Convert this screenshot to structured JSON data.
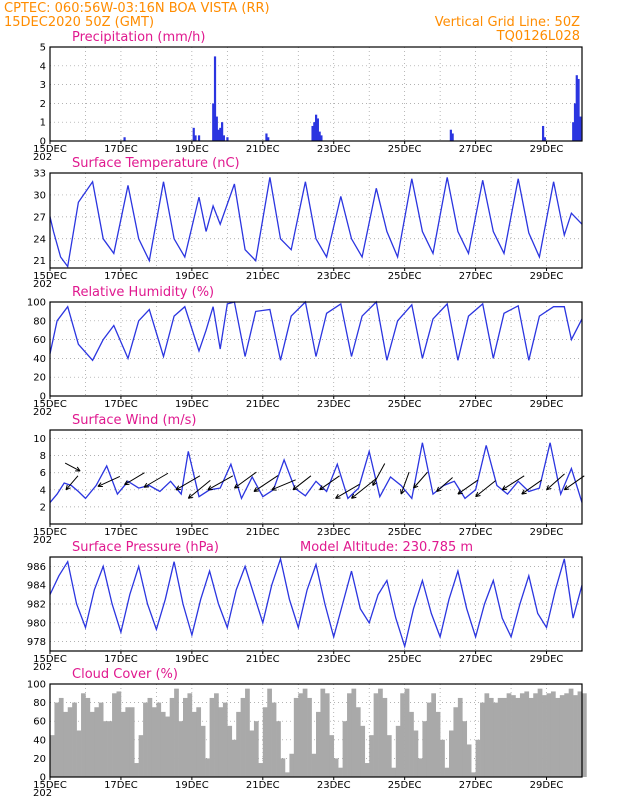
{
  "header": {
    "line1_left": "CPTEC:   060:56W-03:16N  BOA VISTA (RR)",
    "line2_left": "15DEC2020 50Z (GMT)",
    "line2_right": "Vertical Grid Line: 50Z",
    "line3_right": "TQ0126L028"
  },
  "x_ticks": [
    "15DEC",
    "17DEC",
    "19DEC",
    "21DEC",
    "23DEC",
    "25DEC",
    "27DEC",
    "29DEC"
  ],
  "year_stub": "202",
  "panels": {
    "precip": {
      "title": "Precipitation (mm/h)"
    },
    "temp": {
      "title": "Surface Temperature (nC)"
    },
    "rh": {
      "title": "Relative Humidity (%)"
    },
    "wind": {
      "title": "Surface Wind (m/s)"
    },
    "pres": {
      "title": "Surface Pressure (hPa)",
      "extra": "Model Altitude: 230.785 m"
    },
    "cloud": {
      "title": "Cloud Cover (%)"
    }
  },
  "colors": {
    "series": "#2b35e0",
    "cloud": "#a9a9a9",
    "header": "#ff8c00",
    "title": "#e0198f"
  },
  "chart_data": [
    {
      "type": "bar",
      "title": "Precipitation (mm/h)",
      "ylim": [
        0,
        5
      ],
      "yticks": [
        0,
        1,
        2,
        3,
        4,
        5
      ],
      "xlim_days": [
        15,
        30
      ],
      "x": [
        17.1,
        19.05,
        19.1,
        19.2,
        19.6,
        19.65,
        19.7,
        19.75,
        19.8,
        19.85,
        19.9,
        20.0,
        21.1,
        21.15,
        22.4,
        22.45,
        22.5,
        22.55,
        22.6,
        22.65,
        26.3,
        26.35,
        28.9,
        28.95,
        29.75,
        29.8,
        29.85,
        29.9,
        29.95
      ],
      "values": [
        0.2,
        0.7,
        0.3,
        0.3,
        2.0,
        4.5,
        1.3,
        0.6,
        0.7,
        1.0,
        0.3,
        0.2,
        0.4,
        0.2,
        0.8,
        1.0,
        1.4,
        1.2,
        0.5,
        0.3,
        0.6,
        0.4,
        0.8,
        0.2,
        1.0,
        2.0,
        3.5,
        3.3,
        1.3
      ]
    },
    {
      "type": "line",
      "title": "Surface Temperature (nC)",
      "ylim": [
        20,
        33
      ],
      "yticks": [
        21,
        24,
        27,
        30,
        33
      ],
      "x": [
        15.0,
        15.1,
        15.3,
        15.5,
        15.8,
        16.2,
        16.5,
        16.8,
        17.2,
        17.5,
        17.8,
        18.2,
        18.5,
        18.8,
        19.2,
        19.4,
        19.6,
        19.8,
        20.2,
        20.5,
        20.8,
        21.2,
        21.5,
        21.8,
        22.2,
        22.5,
        22.8,
        23.2,
        23.5,
        23.8,
        24.2,
        24.5,
        24.8,
        25.2,
        25.5,
        25.8,
        26.2,
        26.5,
        26.8,
        27.2,
        27.5,
        27.8,
        28.2,
        28.5,
        28.8,
        29.2,
        29.5,
        29.7,
        30.0
      ],
      "values": [
        27,
        25,
        21.5,
        20.2,
        29,
        31.8,
        24,
        22,
        31.3,
        24,
        21,
        31.8,
        24,
        21.5,
        29.7,
        25,
        28.5,
        26,
        31.5,
        22.5,
        21,
        32.4,
        24,
        22.5,
        31.8,
        24,
        21.5,
        29.8,
        24,
        21.5,
        30.9,
        25,
        21.5,
        32.2,
        25,
        22,
        32.4,
        25,
        22,
        32.0,
        25,
        22,
        32.2,
        24.8,
        21.5,
        31.8,
        24.5,
        27.5,
        26
      ]
    },
    {
      "type": "line",
      "title": "Relative Humidity (%)",
      "ylim": [
        0,
        100
      ],
      "yticks": [
        0,
        20,
        40,
        60,
        80,
        100
      ],
      "x": [
        15.0,
        15.2,
        15.5,
        15.8,
        16.2,
        16.5,
        16.8,
        17.2,
        17.5,
        17.8,
        18.2,
        18.5,
        18.8,
        19.2,
        19.4,
        19.6,
        19.8,
        20.0,
        20.2,
        20.5,
        20.8,
        21.2,
        21.5,
        21.8,
        22.2,
        22.5,
        22.8,
        23.2,
        23.5,
        23.8,
        24.2,
        24.5,
        24.8,
        25.2,
        25.5,
        25.8,
        26.2,
        26.5,
        26.8,
        27.2,
        27.5,
        27.8,
        28.2,
        28.5,
        28.8,
        29.2,
        29.5,
        29.7,
        30.0
      ],
      "values": [
        45,
        80,
        95,
        55,
        38,
        60,
        75,
        40,
        80,
        92,
        42,
        85,
        95,
        48,
        70,
        95,
        50,
        98,
        100,
        42,
        90,
        92,
        38,
        85,
        100,
        42,
        88,
        98,
        42,
        85,
        100,
        38,
        80,
        97,
        40,
        82,
        98,
        38,
        85,
        98,
        40,
        88,
        96,
        38,
        85,
        95,
        95,
        60,
        82
      ]
    },
    {
      "type": "line",
      "title": "Surface Wind (m/s)",
      "ylim": [
        0,
        11
      ],
      "yticks": [
        2,
        4,
        6,
        8,
        10
      ],
      "x": [
        15.0,
        15.2,
        15.4,
        15.6,
        15.8,
        16.0,
        16.3,
        16.6,
        16.9,
        17.2,
        17.5,
        17.8,
        18.1,
        18.4,
        18.7,
        18.9,
        19.2,
        19.5,
        19.8,
        20.1,
        20.4,
        20.7,
        21.0,
        21.3,
        21.6,
        21.9,
        22.2,
        22.5,
        22.8,
        23.1,
        23.4,
        23.7,
        24.0,
        24.3,
        24.6,
        24.9,
        25.2,
        25.5,
        25.8,
        26.1,
        26.4,
        26.7,
        27.0,
        27.3,
        27.6,
        27.9,
        28.2,
        28.5,
        28.8,
        29.1,
        29.4,
        29.7,
        30.0
      ],
      "values": [
        2.5,
        3.5,
        4.8,
        4.5,
        3.8,
        3.0,
        4.5,
        6.8,
        3.5,
        5.0,
        4.2,
        4.5,
        3.8,
        5.0,
        3.5,
        8.5,
        3.2,
        4.0,
        4.2,
        7.0,
        3.0,
        5.5,
        3.2,
        4.0,
        7.5,
        4.2,
        3.3,
        5.0,
        3.8,
        7.0,
        3.0,
        4.2,
        8.5,
        3.2,
        5.5,
        4.5,
        3.0,
        9.5,
        3.5,
        4.5,
        5.0,
        3.0,
        4.0,
        9.2,
        4.5,
        3.5,
        5.0,
        3.8,
        4.2,
        9.5,
        3.5,
        6.5,
        2.5
      ]
    },
    {
      "type": "line",
      "title": "Surface Pressure (hPa)",
      "ylim": [
        977,
        987
      ],
      "yticks": [
        978,
        980,
        982,
        984,
        986
      ],
      "x": [
        15.0,
        15.25,
        15.5,
        15.75,
        16.0,
        16.25,
        16.5,
        16.75,
        17.0,
        17.25,
        17.5,
        17.75,
        18.0,
        18.25,
        18.5,
        18.75,
        19.0,
        19.25,
        19.5,
        19.75,
        20.0,
        20.25,
        20.5,
        20.75,
        21.0,
        21.25,
        21.5,
        21.75,
        22.0,
        22.25,
        22.5,
        22.75,
        23.0,
        23.25,
        23.5,
        23.75,
        24.0,
        24.25,
        24.5,
        24.75,
        25.0,
        25.25,
        25.5,
        25.75,
        26.0,
        26.25,
        26.5,
        26.75,
        27.0,
        27.25,
        27.5,
        27.75,
        28.0,
        28.25,
        28.5,
        28.75,
        29.0,
        29.25,
        29.5,
        29.75,
        30.0
      ],
      "values": [
        983,
        985,
        986.5,
        982,
        979.5,
        983.5,
        986,
        982,
        979,
        983,
        986,
        982,
        979.3,
        982.5,
        986.5,
        982,
        978.7,
        982.5,
        985.5,
        982,
        979.5,
        983.5,
        986,
        983,
        980,
        984,
        986.8,
        982.5,
        979.5,
        983.5,
        986.2,
        982,
        978.5,
        982,
        985.5,
        981.5,
        980,
        983,
        984.5,
        980.5,
        977.5,
        981.5,
        984.5,
        981,
        978.5,
        982.5,
        985.5,
        981.5,
        978.5,
        982,
        984.5,
        980.5,
        978.5,
        982,
        985,
        981,
        979.5,
        983.5,
        986.8,
        980.5,
        984
      ]
    },
    {
      "type": "bar",
      "title": "Cloud Cover (%)",
      "ylim": [
        0,
        100
      ],
      "yticks": [
        0,
        20,
        40,
        60,
        80,
        100
      ],
      "x_start": 15.0,
      "x_step": 0.125,
      "values": [
        45,
        80,
        85,
        70,
        75,
        80,
        50,
        90,
        85,
        70,
        75,
        80,
        60,
        60,
        90,
        92,
        70,
        75,
        75,
        15,
        45,
        80,
        85,
        75,
        80,
        70,
        65,
        85,
        95,
        60,
        85,
        90,
        70,
        75,
        55,
        20,
        85,
        90,
        75,
        80,
        55,
        40,
        70,
        85,
        95,
        50,
        60,
        15,
        75,
        95,
        80,
        60,
        20,
        5,
        25,
        85,
        90,
        95,
        85,
        25,
        70,
        95,
        90,
        45,
        20,
        10,
        60,
        90,
        95,
        75,
        55,
        15,
        45,
        90,
        95,
        85,
        45,
        10,
        55,
        90,
        95,
        70,
        50,
        20,
        60,
        80,
        90,
        70,
        40,
        10,
        50,
        75,
        85,
        60,
        35,
        5,
        40,
        80,
        90,
        85,
        80,
        85,
        85,
        90,
        88,
        85,
        90,
        92,
        85,
        90,
        95,
        88,
        90,
        92,
        85,
        88,
        90,
        95,
        88,
        92,
        90,
        85,
        90,
        95,
        98,
        95,
        98,
        95,
        100,
        98,
        95,
        98,
        100,
        95,
        98,
        100,
        98,
        95,
        100,
        98,
        100,
        95,
        98,
        100,
        95,
        98,
        100,
        98,
        95,
        100,
        98,
        95,
        100,
        98,
        95,
        100,
        98,
        95,
        100,
        98,
        95,
        100,
        98,
        95,
        100,
        98,
        95,
        100,
        98,
        95,
        100,
        98,
        95,
        100,
        98,
        95,
        100,
        98,
        100,
        98,
        95,
        100,
        98,
        95,
        100,
        98,
        95,
        100,
        98,
        95
      ]
    }
  ],
  "wind_arrows": [
    {
      "x": 15.45,
      "y": 4.0,
      "dx": 12,
      "dy": -14
    },
    {
      "x": 15.85,
      "y": 6.2,
      "dx": -15,
      "dy": -8
    },
    {
      "x": 16.35,
      "y": 4.4,
      "dx": 22,
      "dy": -10
    },
    {
      "x": 17.1,
      "y": 4.6,
      "dx": 20,
      "dy": -12
    },
    {
      "x": 17.65,
      "y": 4.3,
      "dx": 24,
      "dy": -14
    },
    {
      "x": 18.55,
      "y": 4.0,
      "dx": 24,
      "dy": -14
    },
    {
      "x": 18.9,
      "y": 3.0,
      "dx": 22,
      "dy": -18
    },
    {
      "x": 19.45,
      "y": 4.0,
      "dx": 25,
      "dy": -14
    },
    {
      "x": 20.2,
      "y": 4.2,
      "dx": 22,
      "dy": -16
    },
    {
      "x": 20.75,
      "y": 3.8,
      "dx": 24,
      "dy": -16
    },
    {
      "x": 21.25,
      "y": 4.0,
      "dx": 24,
      "dy": -10
    },
    {
      "x": 21.85,
      "y": 4.0,
      "dx": 18,
      "dy": -14
    },
    {
      "x": 22.6,
      "y": 4.0,
      "dx": 20,
      "dy": -14
    },
    {
      "x": 23.05,
      "y": 3.0,
      "dx": 24,
      "dy": -14
    },
    {
      "x": 23.5,
      "y": 3.0,
      "dx": 25,
      "dy": -20
    },
    {
      "x": 24.1,
      "y": 4.5,
      "dx": 12,
      "dy": -22
    },
    {
      "x": 24.9,
      "y": 3.5,
      "dx": 8,
      "dy": -22
    },
    {
      "x": 25.25,
      "y": 4.2,
      "dx": 14,
      "dy": -16
    },
    {
      "x": 25.9,
      "y": 3.8,
      "dx": 16,
      "dy": -14
    },
    {
      "x": 26.5,
      "y": 3.5,
      "dx": 20,
      "dy": -14
    },
    {
      "x": 27.0,
      "y": 3.2,
      "dx": 20,
      "dy": -16
    },
    {
      "x": 27.75,
      "y": 4.0,
      "dx": 22,
      "dy": -14
    },
    {
      "x": 28.3,
      "y": 3.5,
      "dx": 20,
      "dy": -14
    },
    {
      "x": 29.0,
      "y": 4.0,
      "dx": 18,
      "dy": -16
    },
    {
      "x": 29.5,
      "y": 4.0,
      "dx": 20,
      "dy": -14
    }
  ]
}
